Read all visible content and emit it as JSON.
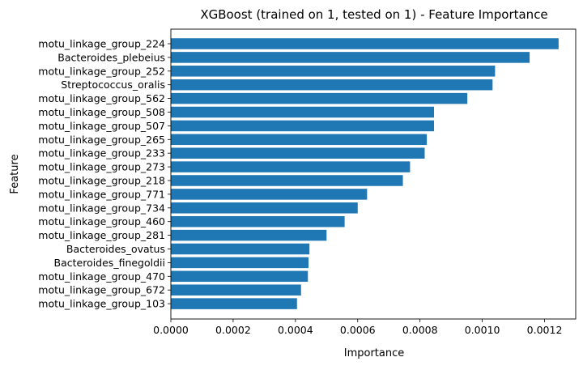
{
  "chart_data": {
    "type": "bar",
    "orientation": "horizontal",
    "title": "XGBoost (trained on 1, tested on 1) -  Feature Importance",
    "xlabel": "Importance",
    "ylabel": "Feature",
    "xlim": [
      0,
      0.0013
    ],
    "xticks": [
      0,
      0.0002,
      0.0004,
      0.0006,
      0.0008,
      0.001,
      0.0012
    ],
    "xtick_labels": [
      "0.0000",
      "0.0002",
      "0.0004",
      "0.0006",
      "0.0008",
      "0.0010",
      "0.0012"
    ],
    "grid": false,
    "bar_color": "#1f77b4",
    "categories": [
      "motu_linkage_group_224",
      "Bacteroides_plebeius",
      "motu_linkage_group_252",
      "Streptococcus_oralis",
      "motu_linkage_group_562",
      "motu_linkage_group_508",
      "motu_linkage_group_507",
      "motu_linkage_group_265",
      "motu_linkage_group_233",
      "motu_linkage_group_273",
      "motu_linkage_group_218",
      "motu_linkage_group_771",
      "motu_linkage_group_734",
      "motu_linkage_group_460",
      "motu_linkage_group_281",
      "Bacteroides_ovatus",
      "Bacteroides_finegoldii",
      "motu_linkage_group_470",
      "motu_linkage_group_672",
      "motu_linkage_group_103"
    ],
    "values": [
      0.001245,
      0.001152,
      0.001041,
      0.001033,
      0.000952,
      0.000845,
      0.000845,
      0.000822,
      0.000815,
      0.000768,
      0.000745,
      0.00063,
      0.0006,
      0.000558,
      0.0005,
      0.000445,
      0.000442,
      0.00044,
      0.000418,
      0.000405
    ]
  }
}
